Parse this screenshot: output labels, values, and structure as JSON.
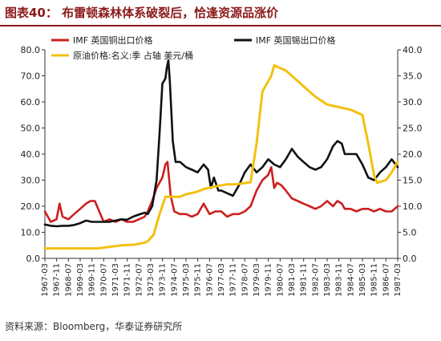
{
  "header": {
    "title": "图表40： 布雷顿森林体系破裂后，恰逢资源品涨价"
  },
  "footer": {
    "source": "资料来源：Bloomberg，华泰证券研究所"
  },
  "colors": {
    "copper": "#cc1f1f",
    "tin": "#111111",
    "oil": "#f2c10f",
    "title": "#8b1a1a"
  },
  "chart_data": {
    "type": "line",
    "title": "",
    "xlabel": "",
    "ylabel_left": "",
    "ylabel_right": "",
    "ylim_left": [
      0,
      80
    ],
    "ylim_right": [
      0,
      40
    ],
    "yticks_left": [
      "0.0",
      "10.0",
      "20.0",
      "30.0",
      "40.0",
      "50.0",
      "60.0",
      "70.0",
      "80.0"
    ],
    "yticks_right": [
      "0.0",
      "5.0",
      "10.0",
      "15.0",
      "20.0",
      "25.0",
      "30.0",
      "35.0",
      "40.0"
    ],
    "grid": false,
    "legend_placement": "top",
    "x_range": [
      1967.17,
      1987.17
    ],
    "x_tick_labels": [
      "1967-03",
      "1967-11",
      "1968-07",
      "1969-03",
      "1969-11",
      "1970-07",
      "1971-03",
      "1971-11",
      "1972-07",
      "1973-03",
      "1973-11",
      "1974-07",
      "1975-03",
      "1975-11",
      "1976-07",
      "1977-03",
      "1977-11",
      "1978-07",
      "1979-03",
      "1979-11",
      "1980-07",
      "1981-03",
      "1981-11",
      "1982-07",
      "1983-03",
      "1983-11",
      "1984-07",
      "1985-03",
      "1985-11",
      "1986-07",
      "1987-03"
    ],
    "series": [
      {
        "name": "IMF 英国铜出口价格",
        "axis": "left",
        "color": "#cc1f1f",
        "points": [
          [
            1967.17,
            18
          ],
          [
            1967.5,
            14
          ],
          [
            1967.83,
            15
          ],
          [
            1968.0,
            21
          ],
          [
            1968.17,
            16
          ],
          [
            1968.5,
            15
          ],
          [
            1968.83,
            17
          ],
          [
            1969.17,
            19
          ],
          [
            1969.5,
            21
          ],
          [
            1969.75,
            22
          ],
          [
            1970.0,
            22
          ],
          [
            1970.25,
            18
          ],
          [
            1970.5,
            14
          ],
          [
            1970.83,
            15
          ],
          [
            1971.17,
            14
          ],
          [
            1971.5,
            15
          ],
          [
            1971.83,
            14
          ],
          [
            1972.17,
            14
          ],
          [
            1972.5,
            15
          ],
          [
            1972.83,
            16
          ],
          [
            1973.0,
            18
          ],
          [
            1973.25,
            22
          ],
          [
            1973.5,
            27
          ],
          [
            1973.83,
            31
          ],
          [
            1974.0,
            36
          ],
          [
            1974.12,
            37
          ],
          [
            1974.3,
            24
          ],
          [
            1974.5,
            18
          ],
          [
            1974.83,
            17
          ],
          [
            1975.17,
            17
          ],
          [
            1975.5,
            16
          ],
          [
            1975.83,
            17
          ],
          [
            1976.17,
            21
          ],
          [
            1976.5,
            17
          ],
          [
            1976.83,
            18
          ],
          [
            1977.17,
            18
          ],
          [
            1977.5,
            16
          ],
          [
            1977.83,
            17
          ],
          [
            1978.17,
            17
          ],
          [
            1978.5,
            18
          ],
          [
            1978.83,
            20
          ],
          [
            1979.17,
            26
          ],
          [
            1979.5,
            30
          ],
          [
            1979.83,
            32
          ],
          [
            1980.0,
            35
          ],
          [
            1980.17,
            27
          ],
          [
            1980.33,
            29
          ],
          [
            1980.58,
            28
          ],
          [
            1980.83,
            26
          ],
          [
            1981.17,
            23
          ],
          [
            1981.5,
            22
          ],
          [
            1981.83,
            21
          ],
          [
            1982.17,
            20
          ],
          [
            1982.5,
            19
          ],
          [
            1982.83,
            20
          ],
          [
            1983.17,
            22
          ],
          [
            1983.5,
            20
          ],
          [
            1983.75,
            22
          ],
          [
            1984.0,
            21
          ],
          [
            1984.17,
            19
          ],
          [
            1984.5,
            19
          ],
          [
            1984.83,
            18
          ],
          [
            1985.17,
            19
          ],
          [
            1985.5,
            19
          ],
          [
            1985.83,
            18
          ],
          [
            1986.17,
            19
          ],
          [
            1986.5,
            18
          ],
          [
            1986.83,
            18
          ],
          [
            1987.17,
            20
          ]
        ]
      },
      {
        "name": "IMF 英国锡出口价格",
        "axis": "left",
        "color": "#111111",
        "points": [
          [
            1967.17,
            13
          ],
          [
            1967.5,
            12.5
          ],
          [
            1967.83,
            12.3
          ],
          [
            1968.17,
            12.5
          ],
          [
            1968.5,
            12.5
          ],
          [
            1968.83,
            12.8
          ],
          [
            1969.17,
            13.5
          ],
          [
            1969.5,
            14.5
          ],
          [
            1969.83,
            14
          ],
          [
            1970.17,
            14
          ],
          [
            1970.5,
            14
          ],
          [
            1970.83,
            14
          ],
          [
            1971.17,
            14.5
          ],
          [
            1971.5,
            15
          ],
          [
            1971.83,
            14.8
          ],
          [
            1972.17,
            16
          ],
          [
            1972.5,
            16.8
          ],
          [
            1972.83,
            17.5
          ],
          [
            1973.0,
            17
          ],
          [
            1973.25,
            20
          ],
          [
            1973.5,
            30
          ],
          [
            1973.67,
            48
          ],
          [
            1973.83,
            67
          ],
          [
            1974.0,
            69
          ],
          [
            1974.08,
            73
          ],
          [
            1974.17,
            76
          ],
          [
            1974.25,
            68
          ],
          [
            1974.42,
            45
          ],
          [
            1974.58,
            37
          ],
          [
            1974.83,
            37
          ],
          [
            1975.17,
            35
          ],
          [
            1975.5,
            34
          ],
          [
            1975.83,
            33
          ],
          [
            1976.17,
            36
          ],
          [
            1976.42,
            34
          ],
          [
            1976.58,
            27
          ],
          [
            1976.75,
            31
          ],
          [
            1977.0,
            26
          ],
          [
            1977.17,
            26
          ],
          [
            1977.5,
            25
          ],
          [
            1977.83,
            24
          ],
          [
            1978.17,
            28
          ],
          [
            1978.5,
            33
          ],
          [
            1978.83,
            36
          ],
          [
            1979.17,
            33
          ],
          [
            1979.5,
            35
          ],
          [
            1979.83,
            38
          ],
          [
            1980.17,
            36
          ],
          [
            1980.5,
            35
          ],
          [
            1980.83,
            38
          ],
          [
            1981.17,
            42
          ],
          [
            1981.5,
            39
          ],
          [
            1981.83,
            37
          ],
          [
            1982.17,
            35
          ],
          [
            1982.5,
            34
          ],
          [
            1982.83,
            35
          ],
          [
            1983.17,
            38
          ],
          [
            1983.5,
            43
          ],
          [
            1983.75,
            45
          ],
          [
            1984.0,
            44
          ],
          [
            1984.17,
            40
          ],
          [
            1984.5,
            40
          ],
          [
            1984.83,
            40
          ],
          [
            1985.17,
            36
          ],
          [
            1985.5,
            31
          ],
          [
            1985.83,
            30
          ],
          [
            1986.17,
            33
          ],
          [
            1986.5,
            35
          ],
          [
            1986.83,
            38
          ],
          [
            1987.17,
            35
          ]
        ]
      },
      {
        "name": "原油价格:名义:季 占轴 美元/桶",
        "axis": "right",
        "color": "#f2c10f",
        "points": [
          [
            1967.17,
            1.9
          ],
          [
            1968.0,
            1.9
          ],
          [
            1969.0,
            1.9
          ],
          [
            1970.17,
            1.9
          ],
          [
            1970.83,
            2.2
          ],
          [
            1971.5,
            2.5
          ],
          [
            1972.17,
            2.6
          ],
          [
            1972.83,
            3.0
          ],
          [
            1973.0,
            3.3
          ],
          [
            1973.33,
            4.5
          ],
          [
            1973.67,
            8.5
          ],
          [
            1974.0,
            11.8
          ],
          [
            1974.83,
            11.8
          ],
          [
            1975.17,
            12.3
          ],
          [
            1975.83,
            12.8
          ],
          [
            1976.17,
            13.3
          ],
          [
            1976.83,
            13.8
          ],
          [
            1977.5,
            14.2
          ],
          [
            1978.0,
            14.2
          ],
          [
            1978.83,
            14.6
          ],
          [
            1979.17,
            22
          ],
          [
            1979.5,
            32
          ],
          [
            1980.0,
            35
          ],
          [
            1980.17,
            37
          ],
          [
            1980.83,
            36
          ],
          [
            1981.17,
            35
          ],
          [
            1981.83,
            33
          ],
          [
            1982.5,
            31
          ],
          [
            1983.17,
            29.5
          ],
          [
            1983.83,
            29
          ],
          [
            1984.5,
            28.5
          ],
          [
            1985.17,
            27.5
          ],
          [
            1985.5,
            22
          ],
          [
            1985.83,
            16
          ],
          [
            1986.0,
            14.5
          ],
          [
            1986.5,
            15
          ],
          [
            1986.83,
            16.5
          ],
          [
            1987.17,
            18.5
          ]
        ]
      }
    ]
  }
}
